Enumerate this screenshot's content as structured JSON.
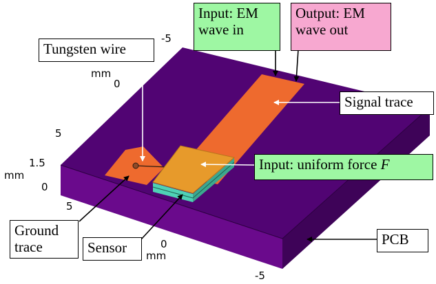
{
  "labels": {
    "tungsten": "Tungsten wire",
    "input_em": [
      "Input: EM",
      "wave in"
    ],
    "output_em": [
      "Output: EM",
      "wave out"
    ],
    "signal_trace": "Signal trace",
    "input_force": "Input: uniform force ",
    "input_force_symbol": "F",
    "ground_trace": [
      "Ground",
      "trace"
    ],
    "sensor": "Sensor",
    "pcb": "PCB"
  },
  "axes": {
    "y_top_neg5": "-5",
    "y_top_mm": "mm",
    "y_top_0": "0",
    "y_left_5": "5",
    "z_mm": "mm",
    "z_15": "1.5",
    "z_0": "0",
    "x_bottom_5": "5",
    "x_bottom_0": "0",
    "x_bottom_mm": "mm",
    "x_bottom_neg5": "-5"
  },
  "colors": {
    "pcb_top": "#510473",
    "pcb_front": "#6a0a8c",
    "pcb_right": "#3e0358",
    "trace": "#ee6a2e",
    "sensor_top": "#e79a2b",
    "sensor_layer": "#4fd1b5",
    "label_green": "#9ef7a3",
    "label_pink": "#f7a8d0"
  }
}
